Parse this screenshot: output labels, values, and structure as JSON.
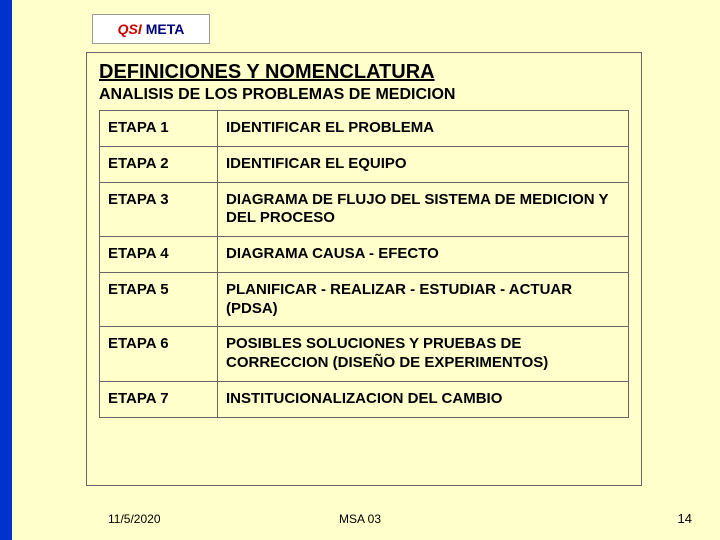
{
  "logo": {
    "part1": "QSI",
    "part2": "META"
  },
  "title": "DEFINICIONES Y NOMENCLATURA",
  "subtitle": "ANALISIS DE LOS PROBLEMAS DE MEDICION",
  "table": {
    "rows": [
      {
        "stage": "ETAPA 1",
        "desc": "IDENTIFICAR EL PROBLEMA"
      },
      {
        "stage": "ETAPA 2",
        "desc": "IDENTIFICAR EL EQUIPO"
      },
      {
        "stage": "ETAPA 3",
        "desc": "DIAGRAMA DE FLUJO DEL SISTEMA DE MEDICION Y DEL PROCESO"
      },
      {
        "stage": "ETAPA 4",
        "desc": "DIAGRAMA CAUSA - EFECTO"
      },
      {
        "stage": "ETAPA 5",
        "desc": "PLANIFICAR - REALIZAR - ESTUDIAR - ACTUAR  (PDSA)"
      },
      {
        "stage": "ETAPA 6",
        "desc": "POSIBLES SOLUCIONES Y PRUEBAS DE CORRECCION (DISEÑO DE EXPERIMENTOS)"
      },
      {
        "stage": "ETAPA 7",
        "desc": "INSTITUCIONALIZACION DEL CAMBIO"
      }
    ]
  },
  "footer": {
    "date": "11/5/2020",
    "center": "MSA 03",
    "page": "14"
  },
  "colors": {
    "background": "#ffffcc",
    "stripe": "#0033cc",
    "border": "#666666"
  }
}
